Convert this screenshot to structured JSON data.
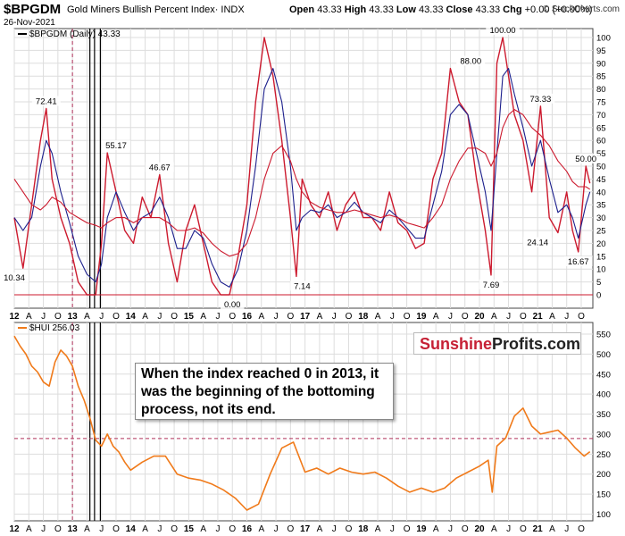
{
  "header": {
    "symbol": "$BPGDM",
    "name": "Gold Miners Bullish Percent Index· INDX",
    "date": "26-Nov-2021",
    "ohlc": {
      "open_label": "Open",
      "open": "43.33",
      "high_label": "High",
      "high": "43.33",
      "low_label": "Low",
      "low": "43.33",
      "close_label": "Close",
      "close": "43.33",
      "chg_label": "Chg",
      "chg": "+0.00 (+0.00%)"
    },
    "copyright": "© StockCharts.com"
  },
  "colors": {
    "bpgdm_line": "#cc1a2e",
    "ma_fast": "#1c1f8c",
    "ma_slow": "#cc1a2e",
    "hui_line": "#f07a1a",
    "guide_dash": "#b0305a",
    "frame": "#444444",
    "grid": "#dddddd"
  },
  "callout": {
    "line1": "When the index reached 0 in 2013, it",
    "line2": "was the beginning of the bottoming",
    "line3": "process, not its end."
  },
  "brand": {
    "part1": "Sunshine",
    "part2": "Profits.com"
  },
  "chart_data": [
    {
      "type": "line",
      "panel": "top",
      "legend": "$BPGDM (Daily) 43.33",
      "ylim": [
        0,
        100
      ],
      "y_ticks": [
        0,
        5,
        10,
        15,
        20,
        25,
        30,
        35,
        40,
        45,
        50,
        55,
        60,
        65,
        70,
        75,
        80,
        85,
        90,
        95,
        100
      ],
      "x_tick_labels": [
        "12",
        "A",
        "J",
        "O",
        "13",
        "A",
        "J",
        "O",
        "14",
        "A",
        "J",
        "O",
        "15",
        "A",
        "J",
        "O",
        "16",
        "A",
        "J",
        "O",
        "17",
        "A",
        "J",
        "O",
        "18",
        "A",
        "J",
        "O",
        "19",
        "A",
        "J",
        "O",
        "20",
        "A",
        "J",
        "O",
        "21",
        "A",
        "J",
        "O"
      ],
      "annotations": [
        {
          "label": "10.34",
          "x": 2012.0,
          "y": 10.34
        },
        {
          "label": "72.41",
          "x": 2012.55,
          "y": 72.41
        },
        {
          "label": "55.17",
          "x": 2013.75,
          "y": 55.17
        },
        {
          "label": "46.67",
          "x": 2014.5,
          "y": 46.67
        },
        {
          "label": "0.00",
          "x": 2015.75,
          "y": 0.0
        },
        {
          "label": "7.14",
          "x": 2016.95,
          "y": 7.14
        },
        {
          "label": "88.00",
          "x": 2019.85,
          "y": 88.0
        },
        {
          "label": "7.69",
          "x": 2020.2,
          "y": 7.69
        },
        {
          "label": "100.00",
          "x": 2020.4,
          "y": 100.0
        },
        {
          "label": "73.33",
          "x": 2021.05,
          "y": 73.33
        },
        {
          "label": "24.14",
          "x": 2021.0,
          "y": 24.14
        },
        {
          "label": "16.67",
          "x": 2021.7,
          "y": 16.67
        },
        {
          "label": "50.00",
          "x": 2021.83,
          "y": 50.0
        }
      ],
      "x": [
        2012.0,
        2012.15,
        2012.3,
        2012.45,
        2012.55,
        2012.65,
        2012.8,
        2012.95,
        2013.1,
        2013.25,
        2013.4,
        2013.5,
        2013.6,
        2013.75,
        2013.9,
        2014.05,
        2014.2,
        2014.35,
        2014.5,
        2014.65,
        2014.8,
        2014.95,
        2015.1,
        2015.25,
        2015.4,
        2015.55,
        2015.7,
        2015.85,
        2016.0,
        2016.15,
        2016.3,
        2016.45,
        2016.6,
        2016.75,
        2016.85,
        2016.95,
        2017.1,
        2017.25,
        2017.4,
        2017.55,
        2017.7,
        2017.85,
        2018.0,
        2018.15,
        2018.3,
        2018.45,
        2018.6,
        2018.75,
        2018.9,
        2019.05,
        2019.2,
        2019.35,
        2019.5,
        2019.65,
        2019.8,
        2019.95,
        2020.1,
        2020.2,
        2020.3,
        2020.4,
        2020.5,
        2020.6,
        2020.75,
        2020.9,
        2021.05,
        2021.2,
        2021.35,
        2021.5,
        2021.6,
        2021.7,
        2021.83,
        2021.9
      ],
      "series": [
        {
          "name": "$BPGDM",
          "values": [
            30,
            10.34,
            35,
            60,
            72.41,
            45,
            30,
            20,
            5,
            0,
            0,
            20,
            55.17,
            40,
            25,
            20,
            38,
            30,
            46.67,
            20,
            5,
            25,
            35,
            20,
            5,
            0,
            0,
            15,
            35,
            75,
            100,
            85,
            60,
            30,
            7.14,
            45,
            35,
            30,
            40,
            25,
            35,
            40,
            30,
            30,
            25,
            40,
            28,
            25,
            18,
            20,
            45,
            55,
            88,
            75,
            70,
            45,
            25,
            7.69,
            90,
            100,
            85,
            70,
            60,
            40,
            73.33,
            30,
            24.14,
            40,
            25,
            16.67,
            50,
            43.33
          ]
        },
        {
          "name": "MA fast",
          "values": [
            30,
            25,
            30,
            50,
            60,
            55,
            40,
            28,
            15,
            8,
            5,
            12,
            30,
            40,
            32,
            25,
            30,
            32,
            38,
            30,
            18,
            18,
            25,
            22,
            12,
            5,
            3,
            10,
            25,
            50,
            80,
            88,
            75,
            50,
            25,
            30,
            33,
            32,
            35,
            30,
            32,
            36,
            32,
            30,
            28,
            33,
            30,
            26,
            22,
            22,
            35,
            48,
            70,
            74,
            70,
            55,
            40,
            25,
            55,
            85,
            88,
            78,
            65,
            50,
            60,
            45,
            32,
            35,
            30,
            22,
            35,
            40
          ]
        },
        {
          "name": "MA slow",
          "values": [
            45,
            40,
            35,
            33,
            35,
            38,
            36,
            32,
            30,
            28,
            27,
            26,
            28,
            30,
            30,
            28,
            30,
            30,
            30,
            28,
            25,
            25,
            26,
            24,
            20,
            17,
            15,
            16,
            20,
            30,
            45,
            55,
            58,
            52,
            45,
            40,
            36,
            34,
            33,
            32,
            32,
            33,
            32,
            31,
            30,
            31,
            30,
            28,
            27,
            26,
            30,
            35,
            45,
            52,
            57,
            57,
            55,
            50,
            55,
            65,
            70,
            72,
            70,
            65,
            62,
            58,
            52,
            48,
            44,
            42,
            42,
            41
          ]
        }
      ]
    },
    {
      "type": "line",
      "panel": "bottom",
      "legend": "$HUI 256.03",
      "ylim": [
        90,
        570
      ],
      "y_ticks": [
        100,
        150,
        200,
        250,
        300,
        350,
        400,
        450,
        500,
        550
      ],
      "reference_line": 289,
      "x_tick_labels": [
        "12",
        "A",
        "J",
        "O",
        "13",
        "A",
        "J",
        "O",
        "14",
        "A",
        "J",
        "O",
        "15",
        "A",
        "J",
        "O",
        "16",
        "A",
        "J",
        "O",
        "17",
        "A",
        "J",
        "O",
        "18",
        "A",
        "J",
        "O",
        "19",
        "A",
        "J",
        "O",
        "20",
        "A",
        "J",
        "O",
        "21",
        "A",
        "J",
        "O"
      ],
      "x": [
        2012.0,
        2012.1,
        2012.2,
        2012.3,
        2012.4,
        2012.5,
        2012.6,
        2012.7,
        2012.8,
        2012.9,
        2013.0,
        2013.1,
        2013.2,
        2013.3,
        2013.4,
        2013.5,
        2013.6,
        2013.7,
        2013.8,
        2013.9,
        2014.0,
        2014.2,
        2014.4,
        2014.6,
        2014.8,
        2015.0,
        2015.2,
        2015.4,
        2015.6,
        2015.8,
        2016.0,
        2016.2,
        2016.4,
        2016.6,
        2016.8,
        2017.0,
        2017.2,
        2017.4,
        2017.6,
        2017.8,
        2018.0,
        2018.2,
        2018.4,
        2018.6,
        2018.8,
        2019.0,
        2019.2,
        2019.4,
        2019.6,
        2019.8,
        2020.0,
        2020.15,
        2020.22,
        2020.3,
        2020.45,
        2020.6,
        2020.75,
        2020.9,
        2021.05,
        2021.2,
        2021.35,
        2021.5,
        2021.65,
        2021.8,
        2021.9
      ],
      "series": [
        {
          "name": "$HUI",
          "values": [
            545,
            520,
            500,
            470,
            455,
            430,
            420,
            480,
            510,
            495,
            470,
            420,
            385,
            340,
            285,
            270,
            300,
            270,
            255,
            230,
            210,
            230,
            245,
            245,
            200,
            190,
            185,
            175,
            160,
            140,
            110,
            125,
            200,
            265,
            280,
            205,
            215,
            200,
            215,
            205,
            200,
            205,
            190,
            170,
            155,
            165,
            155,
            165,
            190,
            205,
            220,
            235,
            155,
            270,
            290,
            345,
            365,
            320,
            300,
            305,
            310,
            290,
            265,
            245,
            256
          ]
        }
      ]
    }
  ]
}
